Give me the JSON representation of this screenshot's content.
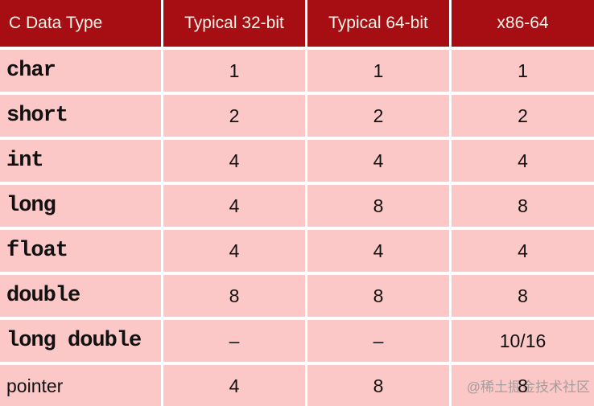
{
  "colors": {
    "header_bg": "#A60E13",
    "header_text": "#FDF4EA",
    "row_bg": "#FBC7C7",
    "gap": "#FFFFFF",
    "body_text": "#111111",
    "watermark": "#A89C9C"
  },
  "chart_data": {
    "type": "table",
    "columns": [
      "C Data Type",
      "Typical 32-bit",
      "Typical 64-bit",
      "x86-64"
    ],
    "rows": [
      {
        "type": "char",
        "monospace": true,
        "values": [
          "1",
          "1",
          "1"
        ]
      },
      {
        "type": "short",
        "monospace": true,
        "values": [
          "2",
          "2",
          "2"
        ]
      },
      {
        "type": "int",
        "monospace": true,
        "values": [
          "4",
          "4",
          "4"
        ]
      },
      {
        "type": "long",
        "monospace": true,
        "values": [
          "4",
          "8",
          "8"
        ]
      },
      {
        "type": "float",
        "monospace": true,
        "values": [
          "4",
          "4",
          "4"
        ]
      },
      {
        "type": "double",
        "monospace": true,
        "values": [
          "8",
          "8",
          "8"
        ]
      },
      {
        "type": "long double",
        "monospace": true,
        "values": [
          "–",
          "–",
          "10/16"
        ]
      },
      {
        "type": "pointer",
        "monospace": false,
        "values": [
          "4",
          "8",
          "8"
        ]
      }
    ]
  },
  "watermark": "@稀土掘金技术社区"
}
